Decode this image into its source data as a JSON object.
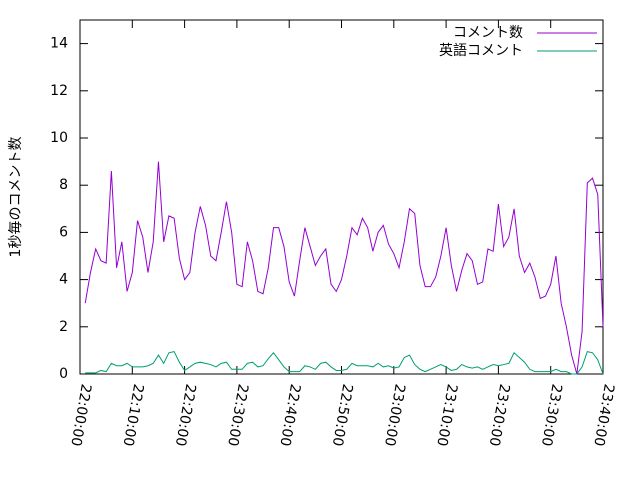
{
  "chart_data": {
    "type": "line",
    "ylabel": "1秒毎のコメント数",
    "x": [
      1,
      2,
      3,
      4,
      5,
      6,
      7,
      8,
      9,
      10,
      11,
      12,
      13,
      14,
      15,
      16,
      17,
      18,
      19,
      20,
      21,
      22,
      23,
      24,
      25,
      26,
      27,
      28,
      29,
      30,
      31,
      32,
      33,
      34,
      35,
      36,
      37,
      38,
      39,
      40,
      41,
      42,
      43,
      44,
      45,
      46,
      47,
      48,
      49,
      50,
      51,
      52,
      53,
      54,
      55,
      56,
      57,
      58,
      59,
      60,
      61,
      62,
      63,
      64,
      65,
      66,
      67,
      68,
      69,
      70,
      71,
      72,
      73,
      74,
      75,
      76,
      77,
      78,
      79,
      80,
      81,
      82,
      83,
      84,
      85,
      86,
      87,
      88,
      89,
      90,
      91,
      92,
      93,
      94,
      95,
      96,
      97,
      98,
      99,
      100
    ],
    "series": [
      {
        "name": "コメント数",
        "color": "#9400d3",
        "values": [
          3.0,
          4.3,
          5.3,
          4.8,
          4.7,
          8.6,
          4.5,
          5.6,
          3.5,
          4.3,
          6.5,
          5.8,
          4.3,
          5.6,
          9.0,
          5.6,
          6.7,
          6.6,
          4.9,
          4.0,
          4.3,
          6.0,
          7.1,
          6.3,
          5.0,
          4.8,
          6.0,
          7.3,
          6.0,
          3.8,
          3.7,
          5.6,
          4.8,
          3.5,
          3.4,
          4.5,
          6.2,
          6.2,
          5.4,
          3.9,
          3.3,
          4.8,
          6.2,
          5.4,
          4.6,
          5.0,
          5.3,
          3.8,
          3.5,
          4.0,
          5.0,
          6.2,
          5.9,
          6.6,
          6.2,
          5.2,
          6.0,
          6.3,
          5.5,
          5.1,
          4.5,
          5.6,
          7.0,
          6.8,
          4.6,
          3.7,
          3.7,
          4.1,
          5.0,
          6.2,
          4.6,
          3.5,
          4.4,
          5.1,
          4.8,
          3.8,
          3.9,
          5.3,
          5.2,
          7.2,
          5.4,
          5.8,
          7.0,
          5.0,
          4.3,
          4.7,
          4.1,
          3.2,
          3.3,
          3.8,
          5.0,
          3.0,
          2.0,
          0.8,
          0.0,
          1.8,
          8.1,
          8.3,
          7.6,
          2.0
        ]
      },
      {
        "name": "英語コメント",
        "color": "#009e73",
        "values": [
          0.05,
          0.05,
          0.05,
          0.15,
          0.1,
          0.45,
          0.35,
          0.35,
          0.45,
          0.3,
          0.3,
          0.3,
          0.35,
          0.45,
          0.8,
          0.45,
          0.9,
          0.95,
          0.5,
          0.15,
          0.3,
          0.45,
          0.5,
          0.45,
          0.4,
          0.3,
          0.45,
          0.5,
          0.2,
          0.2,
          0.2,
          0.45,
          0.5,
          0.3,
          0.35,
          0.65,
          0.9,
          0.6,
          0.3,
          0.1,
          0.1,
          0.1,
          0.35,
          0.3,
          0.2,
          0.45,
          0.5,
          0.3,
          0.15,
          0.15,
          0.2,
          0.45,
          0.35,
          0.35,
          0.35,
          0.3,
          0.45,
          0.3,
          0.35,
          0.25,
          0.3,
          0.7,
          0.8,
          0.4,
          0.2,
          0.1,
          0.2,
          0.3,
          0.4,
          0.3,
          0.15,
          0.2,
          0.4,
          0.3,
          0.25,
          0.3,
          0.2,
          0.3,
          0.4,
          0.35,
          0.4,
          0.45,
          0.9,
          0.7,
          0.5,
          0.2,
          0.1,
          0.1,
          0.1,
          0.1,
          0.2,
          0.1,
          0.1,
          0.0,
          0.0,
          0.3,
          0.95,
          0.9,
          0.6,
          0.0
        ]
      }
    ],
    "xlim": [
      0,
      100
    ],
    "xticks": [
      {
        "value": 0,
        "label": "22:00:00"
      },
      {
        "value": 10,
        "label": "22:10:00"
      },
      {
        "value": 20,
        "label": "22:20:00"
      },
      {
        "value": 30,
        "label": "22:30:00"
      },
      {
        "value": 40,
        "label": "22:40:00"
      },
      {
        "value": 50,
        "label": "22:50:00"
      },
      {
        "value": 60,
        "label": "23:00:00"
      },
      {
        "value": 70,
        "label": "23:10:00"
      },
      {
        "value": 80,
        "label": "23:20:00"
      },
      {
        "value": 90,
        "label": "23:30:00"
      },
      {
        "value": 100,
        "label": "23:40:00"
      }
    ],
    "ylim": [
      0,
      15
    ],
    "yticks": [
      0,
      2,
      4,
      6,
      8,
      10,
      12,
      14
    ],
    "grid": false,
    "legend": "top-right"
  }
}
